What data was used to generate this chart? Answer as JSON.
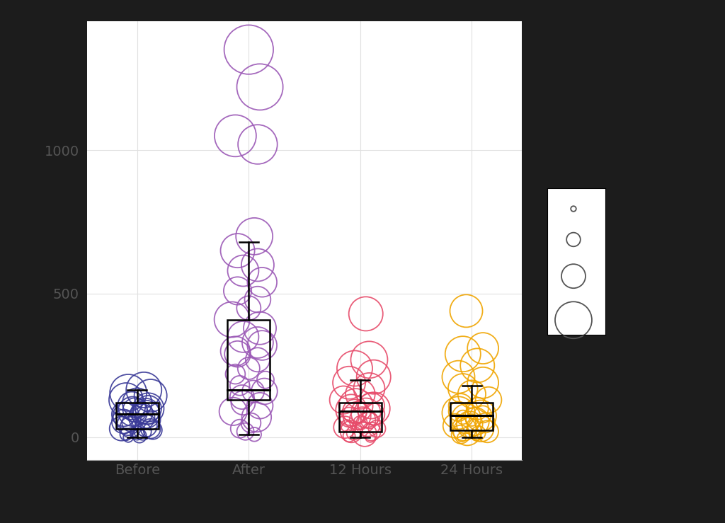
{
  "groups": [
    "Before",
    "After",
    "12 Hours",
    "24 Hours"
  ],
  "group_colors": [
    "#3B3B98",
    "#9B59B6",
    "#E74C6B",
    "#F0A500"
  ],
  "fig_bg": "#1c1c1c",
  "plot_bg": "#ffffff",
  "grid_color": "#e0e0e0",
  "ylim": [
    -80,
    1450
  ],
  "yticks": [
    0,
    500,
    1000
  ],
  "figsize": [
    10.24,
    7.39
  ],
  "dpi": 100,
  "before": {
    "values": [
      130,
      120,
      155,
      165,
      145,
      100,
      110,
      80,
      90,
      85,
      95,
      75,
      60,
      50,
      40,
      30,
      20,
      15,
      10,
      30,
      45,
      70,
      55,
      80,
      90,
      100,
      25,
      35,
      5,
      0
    ],
    "sizes": [
      1200,
      900,
      1400,
      1300,
      1100,
      700,
      800,
      600,
      700,
      500,
      600,
      700,
      400,
      300,
      500,
      600,
      300,
      200,
      150,
      400,
      500,
      700,
      600,
      800,
      900,
      1000,
      350,
      450,
      200,
      100
    ],
    "x_jitter": [
      -0.1,
      0.0,
      -0.08,
      0.06,
      0.12,
      0.1,
      -0.05,
      -0.12,
      0.08,
      0.04,
      -0.02,
      -0.1,
      0.12,
      -0.06,
      0.08,
      -0.14,
      0.05,
      0.0,
      -0.1,
      0.12,
      -0.08,
      0.04,
      -0.12,
      0.08,
      -0.04,
      0.1,
      0.14,
      -0.06,
      0.02,
      -0.08
    ]
  },
  "after": {
    "values": [
      1350,
      1220,
      1050,
      1020,
      700,
      650,
      600,
      580,
      540,
      510,
      480,
      450,
      410,
      380,
      350,
      320,
      290,
      270,
      240,
      220,
      200,
      180,
      160,
      140,
      110,
      90,
      70,
      50,
      20,
      10,
      30,
      300,
      330,
      160,
      120
    ],
    "sizes": [
      2500,
      2200,
      1800,
      1600,
      1400,
      1200,
      1100,
      1000,
      900,
      800,
      700,
      600,
      1300,
      1100,
      1000,
      900,
      700,
      600,
      500,
      400,
      300,
      400,
      500,
      600,
      700,
      800,
      900,
      400,
      300,
      200,
      350,
      900,
      1000,
      700,
      600
    ],
    "x_jitter": [
      0.0,
      0.1,
      -0.12,
      0.08,
      0.05,
      -0.1,
      0.08,
      -0.05,
      0.12,
      -0.1,
      0.08,
      0.0,
      -0.15,
      0.1,
      -0.05,
      0.12,
      -0.1,
      0.08,
      0.0,
      -0.12,
      0.15,
      -0.08,
      0.04,
      -0.06,
      0.1,
      -0.14,
      0.07,
      0.02,
      -0.03,
      0.05,
      -0.08,
      -0.12,
      0.08,
      0.14,
      -0.05
    ]
  },
  "hours12": {
    "values": [
      430,
      270,
      240,
      210,
      190,
      170,
      150,
      130,
      110,
      90,
      80,
      70,
      60,
      50,
      40,
      30,
      20,
      10,
      15,
      20,
      35,
      45,
      60,
      75,
      85,
      95,
      100,
      110,
      0,
      5
    ],
    "sizes": [
      1200,
      1400,
      1300,
      1200,
      1100,
      1000,
      900,
      800,
      700,
      600,
      500,
      400,
      300,
      200,
      150,
      300,
      500,
      600,
      200,
      350,
      500,
      600,
      700,
      800,
      900,
      1000,
      1100,
      1200,
      100,
      150
    ],
    "x_jitter": [
      0.05,
      0.08,
      -0.05,
      0.12,
      -0.1,
      0.08,
      0.0,
      -0.15,
      0.1,
      -0.05,
      0.12,
      -0.1,
      0.08,
      0.0,
      -0.12,
      0.15,
      -0.08,
      0.04,
      -0.06,
      0.1,
      -0.14,
      0.07,
      0.02,
      -0.03,
      0.05,
      -0.08,
      0.12,
      -0.04,
      0.09,
      -0.1
    ]
  },
  "hours24": {
    "values": [
      440,
      310,
      290,
      250,
      210,
      190,
      170,
      150,
      130,
      110,
      100,
      90,
      80,
      70,
      60,
      50,
      40,
      30,
      20,
      15,
      10,
      20,
      30,
      45,
      55,
      65,
      75,
      85,
      5,
      0
    ],
    "sizes": [
      1100,
      1000,
      1300,
      1200,
      1100,
      1000,
      900,
      800,
      700,
      600,
      500,
      400,
      300,
      200,
      150,
      400,
      600,
      700,
      800,
      200,
      350,
      500,
      600,
      700,
      800,
      900,
      1000,
      1100,
      100,
      80
    ],
    "x_jitter": [
      -0.05,
      0.1,
      -0.08,
      0.05,
      -0.12,
      0.1,
      -0.08,
      0.0,
      0.15,
      -0.1,
      0.05,
      -0.12,
      0.1,
      -0.08,
      0.0,
      0.12,
      -0.15,
      0.08,
      -0.04,
      0.06,
      -0.1,
      0.14,
      -0.07,
      -0.02,
      0.03,
      -0.05,
      0.08,
      -0.12,
      0.04,
      -0.09
    ]
  },
  "before_box": {
    "q1": 30,
    "median": 80,
    "q3": 120,
    "whisker_low": 0,
    "whisker_high": 165
  },
  "after_box": {
    "q1": 130,
    "median": 165,
    "q3": 410,
    "whisker_low": 10,
    "whisker_high": 680
  },
  "hours12_box": {
    "q1": 20,
    "median": 90,
    "q3": 120,
    "whisker_low": 0,
    "whisker_high": 200
  },
  "hours24_box": {
    "q1": 25,
    "median": 75,
    "q3": 120,
    "whisker_low": 0,
    "whisker_high": 180
  },
  "legend_sizes": [
    30,
    200,
    600,
    1400
  ],
  "tick_fontsize": 14,
  "label_fontsize": 14
}
